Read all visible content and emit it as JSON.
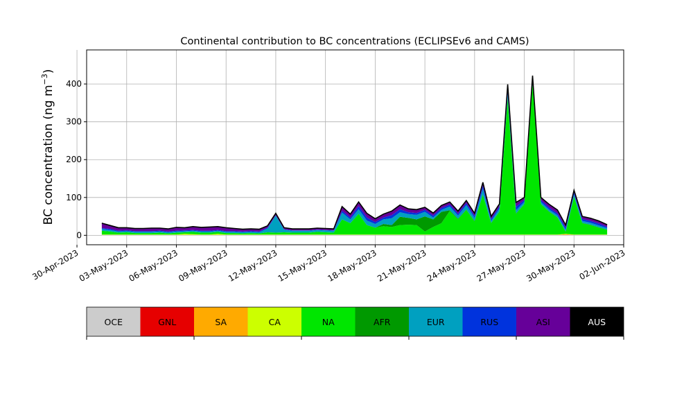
{
  "chart_data": {
    "type": "area",
    "title": "Continental contribution to BC concentrations (ECLIPSEv6 and CAMS)",
    "ylabel": "BC concentration (ng m",
    "ylabel_exp": "−3",
    "ylabel_close": ")",
    "xlabel": "",
    "ylim": [
      -25,
      490
    ],
    "xlim": [
      "2023-04-30T14:00",
      "2023-06-02T00:00"
    ],
    "yticks": [
      0,
      100,
      200,
      300,
      400
    ],
    "xticks": [
      "30-Apr-2023",
      "03-May-2023",
      "06-May-2023",
      "09-May-2023",
      "12-May-2023",
      "15-May-2023",
      "18-May-2023",
      "21-May-2023",
      "24-May-2023",
      "27-May-2023",
      "30-May-2023",
      "02-Jun-2023"
    ],
    "grid": true,
    "stacking": "stacked",
    "colors": {
      "OCE": "#cccccc",
      "GNL": "#e60000",
      "SA": "#ffaa00",
      "CA": "#ccff00",
      "NA": "#00e600",
      "AFR": "#009900",
      "EUR": "#00a0c0",
      "RUS": "#0033dd",
      "ASI": "#660099",
      "AUS": "#000000"
    },
    "legend_entries": [
      "OCE",
      "GNL",
      "SA",
      "CA",
      "NA",
      "AFR",
      "EUR",
      "RUS",
      "ASI",
      "AUS"
    ],
    "legend_placement": "bottom",
    "x": [
      "2023-05-01T12:00",
      "2023-05-02T00:00",
      "2023-05-02T12:00",
      "2023-05-03T00:00",
      "2023-05-03T12:00",
      "2023-05-04T00:00",
      "2023-05-04T12:00",
      "2023-05-05T00:00",
      "2023-05-05T12:00",
      "2023-05-06T00:00",
      "2023-05-06T12:00",
      "2023-05-07T00:00",
      "2023-05-07T12:00",
      "2023-05-08T00:00",
      "2023-05-08T12:00",
      "2023-05-09T00:00",
      "2023-05-09T12:00",
      "2023-05-10T00:00",
      "2023-05-10T12:00",
      "2023-05-11T00:00",
      "2023-05-11T12:00",
      "2023-05-12T00:00",
      "2023-05-12T12:00",
      "2023-05-13T00:00",
      "2023-05-13T12:00",
      "2023-05-14T00:00",
      "2023-05-14T12:00",
      "2023-05-15T00:00",
      "2023-05-15T12:00",
      "2023-05-16T00:00",
      "2023-05-16T12:00",
      "2023-05-17T00:00",
      "2023-05-17T12:00",
      "2023-05-18T00:00",
      "2023-05-18T12:00",
      "2023-05-19T00:00",
      "2023-05-19T12:00",
      "2023-05-20T00:00",
      "2023-05-20T12:00",
      "2023-05-21T00:00",
      "2023-05-21T12:00",
      "2023-05-22T00:00",
      "2023-05-22T12:00",
      "2023-05-23T00:00",
      "2023-05-23T12:00",
      "2023-05-24T00:00",
      "2023-05-24T12:00",
      "2023-05-25T00:00",
      "2023-05-25T12:00",
      "2023-05-26T00:00",
      "2023-05-26T12:00",
      "2023-05-27T00:00",
      "2023-05-27T12:00",
      "2023-05-28T00:00",
      "2023-05-28T12:00",
      "2023-05-29T00:00",
      "2023-05-29T12:00",
      "2023-05-30T00:00",
      "2023-05-30T12:00",
      "2023-05-31T00:00",
      "2023-05-31T12:00",
      "2023-06-01T00:00"
    ],
    "series": [
      {
        "name": "OCE",
        "values": [
          1,
          1,
          1,
          1,
          1,
          1,
          1,
          1,
          1,
          1,
          1,
          1,
          1,
          1,
          1,
          1,
          1,
          1,
          1,
          1,
          1,
          1,
          1,
          1,
          1,
          1,
          1,
          1,
          1,
          1,
          1,
          1,
          1,
          1,
          1,
          1,
          1,
          1,
          1,
          1,
          1,
          1,
          1,
          1,
          1,
          1,
          1,
          1,
          1,
          1,
          1,
          1,
          1,
          1,
          1,
          1,
          1,
          1,
          1,
          1,
          1,
          1
        ]
      },
      {
        "name": "GNL",
        "values": [
          0,
          0,
          0,
          0,
          0,
          0,
          0,
          0,
          0,
          0,
          0,
          0,
          0,
          0,
          0,
          0,
          0,
          0,
          0,
          0,
          0,
          0,
          0,
          0,
          0,
          0,
          0,
          0,
          0,
          0,
          0,
          0,
          0,
          0,
          0,
          0,
          0,
          0,
          0,
          0,
          0,
          0,
          0,
          0,
          0,
          0,
          0,
          0,
          0,
          0,
          0,
          0,
          0,
          0,
          0,
          0,
          0,
          0,
          0,
          0,
          0,
          0
        ]
      },
      {
        "name": "SA",
        "values": [
          0,
          0,
          0,
          0,
          0,
          0,
          0,
          0,
          0,
          0,
          0,
          0,
          0,
          0,
          0,
          0,
          0,
          0,
          0,
          0,
          0,
          0,
          0,
          0,
          0,
          0,
          0,
          0,
          0,
          0,
          0,
          0,
          0,
          0,
          0,
          0,
          0,
          0,
          0,
          0,
          0,
          0,
          0,
          0,
          0,
          0,
          0,
          0,
          0,
          0,
          0,
          0,
          0,
          0,
          0,
          0,
          2,
          0,
          0,
          0,
          0,
          0
        ]
      },
      {
        "name": "CA",
        "values": [
          1,
          1,
          1,
          1,
          1,
          1,
          1,
          1,
          1,
          1,
          3,
          2,
          1,
          1,
          3,
          1,
          1,
          1,
          1,
          1,
          1,
          1,
          1,
          1,
          1,
          1,
          1,
          1,
          1,
          1,
          1,
          1,
          1,
          1,
          1,
          1,
          1,
          1,
          1,
          1,
          1,
          1,
          1,
          1,
          1,
          1,
          1,
          1,
          1,
          1,
          1,
          1,
          1,
          1,
          1,
          1,
          1,
          1,
          1,
          1,
          1,
          1
        ]
      },
      {
        "name": "NA",
        "values": [
          10,
          8,
          5,
          6,
          4,
          4,
          4,
          5,
          3,
          5,
          4,
          6,
          5,
          5,
          5,
          4,
          4,
          3,
          4,
          3,
          6,
          5,
          6,
          5,
          5,
          5,
          7,
          6,
          5,
          40,
          30,
          55,
          25,
          18,
          22,
          20,
          25,
          26,
          25,
          8,
          20,
          30,
          62,
          40,
          65,
          35,
          105,
          30,
          60,
          360,
          55,
          80,
          400,
          80,
          60,
          45,
          5,
          100,
          30,
          25,
          18,
          12
        ]
      },
      {
        "name": "AFR",
        "values": [
          0,
          0,
          0,
          0,
          0,
          0,
          0,
          0,
          0,
          0,
          0,
          0,
          0,
          0,
          0,
          0,
          0,
          0,
          0,
          0,
          0,
          0,
          0,
          0,
          0,
          0,
          0,
          0,
          0,
          0,
          0,
          0,
          0,
          0,
          6,
          5,
          22,
          18,
          15,
          40,
          20,
          30,
          2,
          2,
          1,
          1,
          1,
          1,
          1,
          1,
          1,
          1,
          1,
          1,
          1,
          1,
          1,
          1,
          1,
          1,
          1,
          1
        ]
      },
      {
        "name": "EUR",
        "values": [
          5,
          4,
          3,
          3,
          3,
          3,
          3,
          3,
          3,
          3,
          3,
          3,
          3,
          3,
          3,
          3,
          3,
          3,
          3,
          3,
          10,
          45,
          7,
          5,
          5,
          5,
          5,
          5,
          5,
          18,
          10,
          12,
          12,
          10,
          12,
          18,
          12,
          10,
          12,
          12,
          5,
          5,
          10,
          8,
          12,
          8,
          15,
          5,
          8,
          10,
          8,
          5,
          5,
          5,
          5,
          5,
          5,
          5,
          5,
          5,
          5,
          4
        ]
      },
      {
        "name": "RUS",
        "values": [
          2,
          3,
          2,
          2,
          2,
          2,
          2,
          2,
          2,
          2,
          2,
          2,
          2,
          2,
          2,
          2,
          2,
          2,
          2,
          2,
          2,
          1,
          1,
          1,
          1,
          1,
          1,
          1,
          1,
          5,
          5,
          8,
          8,
          5,
          5,
          8,
          8,
          5,
          5,
          5,
          5,
          5,
          5,
          5,
          5,
          5,
          8,
          5,
          5,
          10,
          10,
          5,
          5,
          5,
          5,
          5,
          5,
          5,
          5,
          5,
          5,
          3
        ]
      },
      {
        "name": "ASI",
        "values": [
          12,
          8,
          7,
          6,
          6,
          6,
          7,
          6,
          6,
          8,
          6,
          8,
          8,
          9,
          8,
          8,
          6,
          5,
          5,
          5,
          4,
          4,
          3,
          3,
          3,
          3,
          3,
          3,
          3,
          10,
          8,
          10,
          10,
          8,
          8,
          10,
          10,
          8,
          8,
          6,
          6,
          6,
          6,
          6,
          6,
          6,
          8,
          6,
          6,
          15,
          10,
          6,
          8,
          6,
          8,
          8,
          6,
          5,
          6,
          6,
          6,
          5
        ]
      },
      {
        "name": "AUS",
        "values": [
          1,
          1,
          1,
          1,
          1,
          1,
          1,
          1,
          1,
          1,
          1,
          1,
          1,
          1,
          1,
          1,
          1,
          1,
          1,
          1,
          1,
          1,
          1,
          1,
          1,
          1,
          1,
          1,
          1,
          1,
          1,
          1,
          1,
          1,
          1,
          1,
          1,
          1,
          1,
          1,
          1,
          1,
          1,
          1,
          1,
          1,
          1,
          1,
          1,
          1,
          1,
          1,
          1,
          1,
          1,
          1,
          1,
          1,
          1,
          1,
          1,
          1
        ]
      }
    ]
  }
}
